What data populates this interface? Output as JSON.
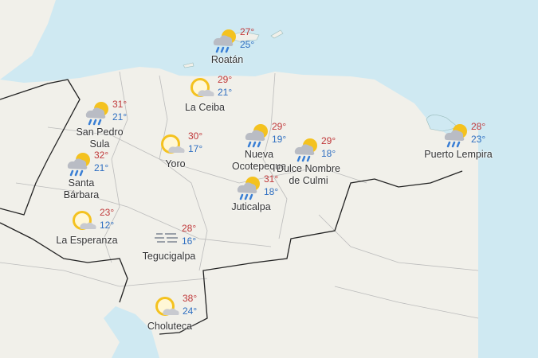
{
  "colors": {
    "sea": "#cfe9f2",
    "land": "#f1f0ea",
    "high_temp": "#c0393b",
    "low_temp": "#2f6fc1",
    "border": "#222222"
  },
  "cities": [
    {
      "name": "Roatán",
      "high": "27°",
      "low": "25°",
      "icon": "partly-cloudy-rain-icon"
    },
    {
      "name": "La Ceiba",
      "high": "29°",
      "low": "21°",
      "icon": "partly-cloudy-icon"
    },
    {
      "name": "San Pedro Sula",
      "high": "31°",
      "low": "21°",
      "icon": "partly-cloudy-rain-icon"
    },
    {
      "name": "Yoro",
      "high": "30°",
      "low": "17°",
      "icon": "partly-cloudy-icon"
    },
    {
      "name": "Nueva Ocotepeque",
      "high": "29°",
      "low": "19°",
      "icon": "partly-cloudy-rain-icon"
    },
    {
      "name": "Dulce Nombre de Culmi",
      "high": "29°",
      "low": "18°",
      "icon": "partly-cloudy-rain-icon"
    },
    {
      "name": "Juticalpa",
      "high": "31°",
      "low": "18°",
      "icon": "partly-cloudy-rain-icon"
    },
    {
      "name": "Santa Bárbara",
      "high": "32°",
      "low": "21°",
      "icon": "partly-cloudy-rain-icon"
    },
    {
      "name": "La Esperanza",
      "high": "23°",
      "low": "12°",
      "icon": "partly-cloudy-icon"
    },
    {
      "name": "Tegucigalpa",
      "high": "28°",
      "low": "16°",
      "icon": "fog-icon"
    },
    {
      "name": "Choluteca",
      "high": "38°",
      "low": "24°",
      "icon": "partly-cloudy-icon"
    },
    {
      "name": "Puerto Lempira",
      "high": "28°",
      "low": "23°",
      "icon": "partly-cloudy-rain-icon"
    }
  ]
}
